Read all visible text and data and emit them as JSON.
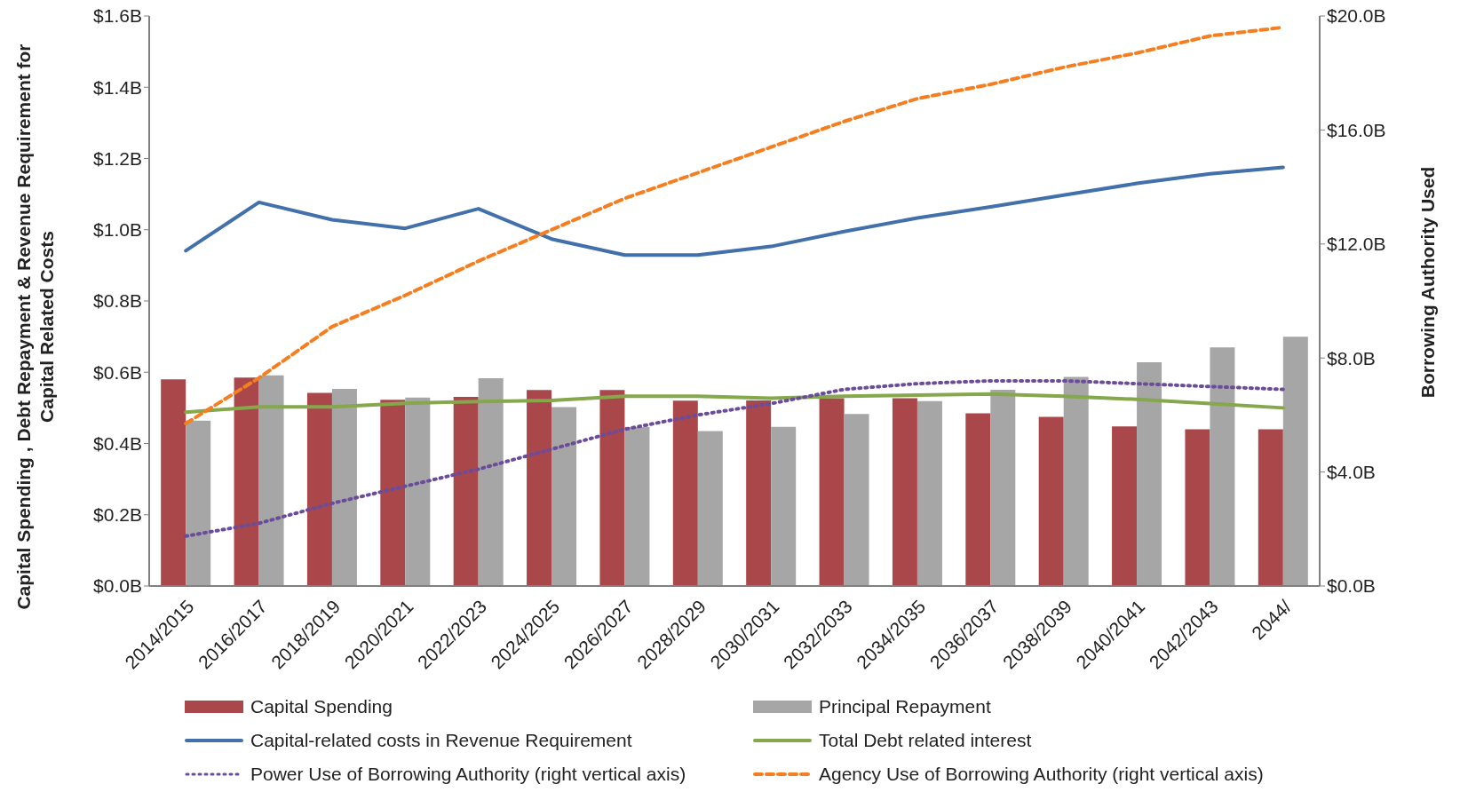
{
  "chart_data": {
    "type": "bar",
    "xlabel": null,
    "ylabel": "Capital Spending , Debt Repayment & Revenue Requirement for Capital Related Costs",
    "y2label": "Borrowing Authority Used",
    "categories": [
      "2014/2015",
      "2016/2017",
      "2018/2019",
      "2020/2021",
      "2022/2023",
      "2024/2025",
      "2026/2027",
      "2028/2029",
      "2030/2031",
      "2032/2033",
      "2034/2035",
      "2036/2037",
      "2038/2039",
      "2040/2041",
      "2042/2043",
      "2044/"
    ],
    "series": [
      {
        "name": "Capital Spending",
        "color": "#a9474a",
        "values": [
          0.58,
          0.585,
          0.542,
          0.523,
          0.531,
          0.55,
          0.55,
          0.52,
          0.521,
          0.527,
          0.527,
          0.485,
          0.475,
          0.448,
          0.44,
          0.44
        ]
      },
      {
        "name": "Principal Repayment",
        "color": "#a6a6a6",
        "values": [
          0.464,
          0.591,
          0.553,
          0.529,
          0.583,
          0.502,
          0.446,
          0.435,
          0.447,
          0.483,
          0.519,
          0.551,
          0.587,
          0.628,
          0.67,
          0.7
        ]
      },
      {
        "name": "Capital-related costs in Revenue Requirement",
        "type": "line",
        "color": "#4270ab",
        "line_style": "solid",
        "values": [
          0.941,
          1.077,
          1.028,
          1.004,
          1.059,
          0.974,
          0.929,
          0.929,
          0.953,
          0.995,
          1.033,
          1.064,
          1.097,
          1.13,
          1.157,
          1.175
        ]
      },
      {
        "name": "Total Debt related interest",
        "type": "line",
        "color": "#84a84b",
        "line_style": "solid",
        "values": [
          0.488,
          0.503,
          0.503,
          0.513,
          0.518,
          0.521,
          0.533,
          0.533,
          0.527,
          0.533,
          0.536,
          0.539,
          0.533,
          0.524,
          0.512,
          0.5
        ]
      },
      {
        "name": "Power Use of Borrowing Authority (right vertical axis)",
        "type": "line",
        "color": "#6b4c9a",
        "line_style": "dotted",
        "axis": "y2",
        "values": [
          1.75,
          2.2,
          2.9,
          3.5,
          4.1,
          4.8,
          5.5,
          6.0,
          6.4,
          6.9,
          7.1,
          7.2,
          7.2,
          7.1,
          7.0,
          6.9
        ]
      },
      {
        "name": "Agency Use of Borrowing Authority (right vertical axis)",
        "type": "line",
        "color": "#f57f20",
        "line_style": "dashed",
        "axis": "y2",
        "values": [
          5.7,
          7.3,
          9.1,
          10.2,
          11.4,
          12.5,
          13.6,
          14.5,
          15.4,
          16.3,
          17.1,
          17.6,
          18.2,
          18.7,
          19.3,
          19.6
        ]
      }
    ],
    "ylim": [
      0,
      1.6
    ],
    "yticks": [
      {
        "value": 0,
        "label": "$0.0B"
      },
      {
        "value": 0.2,
        "label": "$0.2B"
      },
      {
        "value": 0.4,
        "label": "$0.4B"
      },
      {
        "value": 0.6,
        "label": "$0.6B"
      },
      {
        "value": 0.8,
        "label": "$0.8B"
      },
      {
        "value": 1.0,
        "label": "$1.0B"
      },
      {
        "value": 1.2,
        "label": "$1.2B"
      },
      {
        "value": 1.4,
        "label": "$1.4B"
      },
      {
        "value": 1.6,
        "label": "$1.6B"
      }
    ],
    "y2lim": [
      0,
      20
    ],
    "y2ticks": [
      {
        "value": 0,
        "label": "$0.0B"
      },
      {
        "value": 4,
        "label": "$4.0B"
      },
      {
        "value": 8,
        "label": "$8.0B"
      },
      {
        "value": 12,
        "label": "$12.0B"
      },
      {
        "value": 16,
        "label": "$16.0B"
      },
      {
        "value": 20,
        "label": "$20.0B"
      }
    ],
    "grid": false,
    "legend": "bottom",
    "marker": "none"
  }
}
